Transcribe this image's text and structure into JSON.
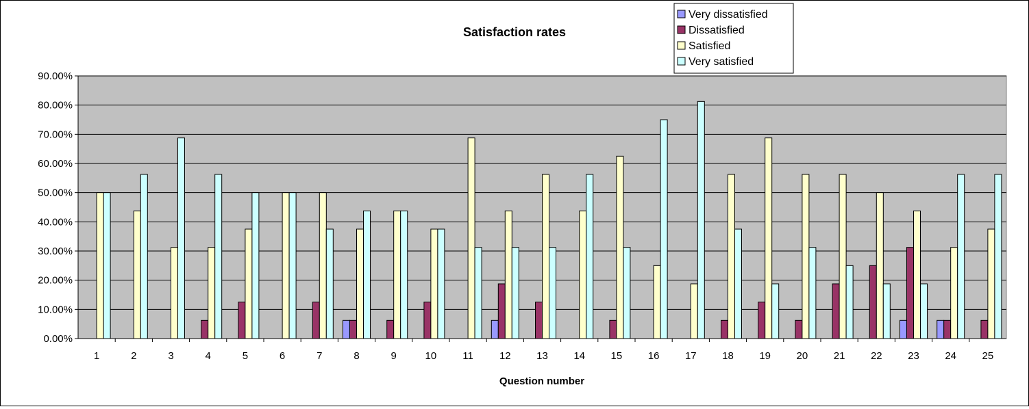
{
  "chart_data": {
    "type": "bar",
    "title": "Satisfaction rates",
    "xlabel": "Question number",
    "ylabel": "",
    "ylim": [
      0,
      0.9
    ],
    "y_ticks": [
      0,
      0.1,
      0.2,
      0.3,
      0.4,
      0.5,
      0.6,
      0.7,
      0.8,
      0.9
    ],
    "y_tick_labels": [
      "0.00%",
      "10.00%",
      "20.00%",
      "30.00%",
      "40.00%",
      "50.00%",
      "60.00%",
      "70.00%",
      "80.00%",
      "90.00%"
    ],
    "grid": true,
    "legend_position": "top-right",
    "categories": [
      "1",
      "2",
      "3",
      "4",
      "5",
      "6",
      "7",
      "8",
      "9",
      "10",
      "11",
      "12",
      "13",
      "14",
      "15",
      "16",
      "17",
      "18",
      "19",
      "20",
      "21",
      "22",
      "23",
      "24",
      "25"
    ],
    "series": [
      {
        "name": "Very dissatisfied",
        "color": "#9999ff",
        "values": [
          0,
          0,
          0,
          0,
          0,
          0,
          0,
          0.0625,
          0,
          0,
          0,
          0.0625,
          0,
          0,
          0,
          0,
          0,
          0,
          0,
          0,
          0,
          0,
          0.0625,
          0.0625,
          0
        ]
      },
      {
        "name": "Dissatisfied",
        "color": "#993366",
        "values": [
          0,
          0,
          0,
          0.0625,
          0.125,
          0,
          0.125,
          0.0625,
          0.0625,
          0.125,
          0,
          0.1875,
          0.125,
          0,
          0.0625,
          0,
          0,
          0.0625,
          0.125,
          0.0625,
          0.1875,
          0.25,
          0.3125,
          0.0625,
          0.0625
        ]
      },
      {
        "name": "Satisfied",
        "color": "#ffffcc",
        "values": [
          0.5,
          0.4375,
          0.3125,
          0.3125,
          0.375,
          0.5,
          0.5,
          0.375,
          0.4375,
          0.375,
          0.6875,
          0.4375,
          0.5625,
          0.4375,
          0.625,
          0.25,
          0.1875,
          0.5625,
          0.6875,
          0.5625,
          0.5625,
          0.5,
          0.4375,
          0.3125,
          0.375
        ]
      },
      {
        "name": "Very satisfied",
        "color": "#ccffff",
        "values": [
          0.5,
          0.5625,
          0.6875,
          0.5625,
          0.5,
          0.5,
          0.375,
          0.4375,
          0.4375,
          0.375,
          0.3125,
          0.3125,
          0.3125,
          0.5625,
          0.3125,
          0.75,
          0.8125,
          0.375,
          0.1875,
          0.3125,
          0.25,
          0.1875,
          0.1875,
          0.5625,
          0.5625
        ]
      }
    ],
    "colors": {
      "plot_background": "#c0c0c0",
      "gridline": "#000000",
      "bar_outline": "#000000"
    }
  }
}
